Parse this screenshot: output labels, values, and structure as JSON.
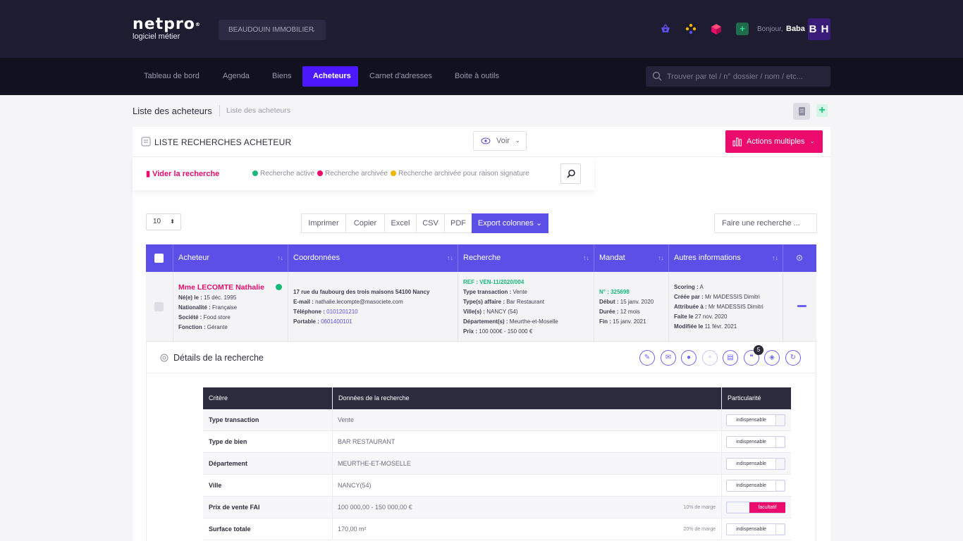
{
  "brand": {
    "name": "netpro",
    "reg": "®",
    "tagline": "logiciel métier"
  },
  "agency": {
    "label": "BEAUDOUIN IMMOBILIER",
    "chevron": "⌄"
  },
  "user": {
    "greeting": "Bonjour,",
    "name": "Baba",
    "initials": "B H"
  },
  "top_icons": [
    "basket-icon",
    "dots-icon",
    "cube-icon",
    "add-document-icon"
  ],
  "nav": {
    "items": [
      "Tableau de bord",
      "Agenda",
      "Biens",
      "Acheteurs",
      "Carnet d'adresses",
      "Boite à outils"
    ],
    "active": "Acheteurs",
    "search_placeholder": "Trouver par tel / n° dossier / nom / etc..."
  },
  "breadcrumb": {
    "title": "Liste des acheteurs",
    "crumb": "Liste des acheteurs"
  },
  "panel": {
    "title": "LISTE RECHERCHES ACHETEUR",
    "voir": "Voir",
    "actions": "Actions multiples",
    "clear": "Vider la recherche",
    "legend": [
      {
        "label": "Recherche active",
        "color": "#17b978"
      },
      {
        "label": "Recherche archivée",
        "color": "#ec0a6c"
      },
      {
        "label": "Recherche archivée pour raison signature",
        "color": "#f0b400"
      }
    ]
  },
  "controls": {
    "page_size": "10",
    "export": [
      "Imprimer",
      "Copier",
      "Excel",
      "CSV",
      "PDF"
    ],
    "export_cols": "Export colonnes",
    "search_placeholder": "Faire une recherche ..."
  },
  "table": {
    "headers": [
      "Acheteur",
      "Coordonnées",
      "Recherche",
      "Mandat",
      "Autres informations"
    ],
    "row": {
      "name": "Mme LECOMTE Nathalie",
      "acheteur": [
        {
          "k": "Né(e) le :",
          "v": " 15 déc. 1995"
        },
        {
          "k": "Nationalité :",
          "v": " Française"
        },
        {
          "k": "Société :",
          "v": " Food store"
        },
        {
          "k": "Fonction :",
          "v": " Gérante"
        }
      ],
      "address": "17 rue du faubourg des trois maisons 54100 Nancy",
      "email_k": "E-mail :",
      "email": " nathalie.lecompte@masociete.com",
      "tel_k": "Téléphone :",
      "tel": " 0101201210",
      "port_k": "Portable :",
      "port": " 0601400101",
      "ref": "REF : VEN-11/2020/004",
      "recherche": [
        {
          "k": "Type transaction :",
          "v": " Vente"
        },
        {
          "k": "Type(s) affaire :",
          "v": " Bar Restaurant"
        },
        {
          "k": "Ville(s) :",
          "v": " NANCY (54)"
        },
        {
          "k": "Département(s) :",
          "v": " Meurthe-et-Moselle"
        },
        {
          "k": "Prix :",
          "v": " 100 000€ - 150 000 €"
        }
      ],
      "mandat_no": "N° : 325698",
      "mandat": [
        {
          "k": "Début :",
          "v": " 15 janv. 2020"
        },
        {
          "k": "Durée :",
          "v": " 12 mois"
        },
        {
          "k": "Fin :",
          "v": " 15 janv. 2021"
        }
      ],
      "autres": [
        {
          "k": "Scoring :",
          "v": " A"
        },
        {
          "k": "Créée par :",
          "v": " Mr MADESSIS Dimitri"
        },
        {
          "k": "Attribuée à :",
          "v": " Mr MADESSIS Dimitri"
        },
        {
          "k": "Faite le",
          "v": " 27 nov. 2020"
        },
        {
          "k": "Modifiée le",
          "v": " 11 févr. 2021"
        }
      ]
    }
  },
  "details": {
    "title": "Détails de la recherche",
    "badge": "5",
    "headers": [
      "Critère",
      "Données de la recherche",
      "Particularité"
    ],
    "rows": [
      {
        "critere": "Type transaction",
        "donnee": "Vente",
        "marge": "",
        "toggle": "indispensable"
      },
      {
        "critere": "Type de bien",
        "donnee": "BAR RESTAURANT",
        "marge": "",
        "toggle": "indispensable"
      },
      {
        "critere": "Département",
        "donnee": "MEURTHE-ET-MOSELLE",
        "marge": "",
        "toggle": "indispensable"
      },
      {
        "critere": "Ville",
        "donnee": "NANCY(54)",
        "marge": "",
        "toggle": "indispensable"
      },
      {
        "critere": "Prix de vente FAI",
        "donnee": "100 000,00  - 150 000,00 €",
        "marge": "10% de marge",
        "toggle": "facultatif"
      },
      {
        "critere": "Surface totale",
        "donnee": "170,00 m²",
        "marge": "20% de marge",
        "toggle": "indispensable"
      }
    ]
  }
}
